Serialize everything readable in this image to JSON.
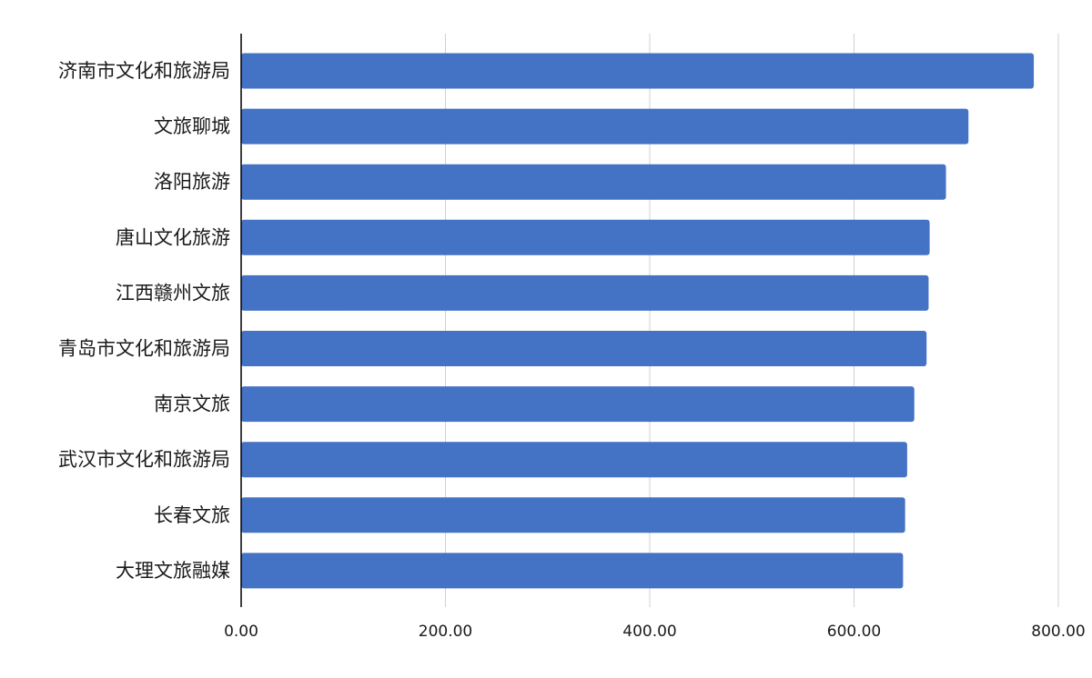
{
  "chart_data": {
    "type": "bar",
    "orientation": "horizontal",
    "categories": [
      "济南市文化和旅游局",
      "文旅聊城",
      "洛阳旅游",
      "唐山文化旅游",
      "江西赣州文旅",
      "青岛市文化和旅游局",
      "南京文旅",
      "武汉市文化和旅游局",
      "长春文旅",
      "大理文旅融媒"
    ],
    "values": [
      776,
      712,
      690,
      674,
      673,
      671,
      659,
      652,
      650,
      648
    ],
    "xlim": [
      0,
      800
    ],
    "xticks": [
      "0.00",
      "200.00",
      "400.00",
      "600.00",
      "800.00"
    ],
    "title": "",
    "xlabel": "",
    "ylabel": "",
    "grid": "vertical",
    "bar_color": "#4472C4",
    "grid_color": "#D0D0D0",
    "axis_color": "#000000",
    "label_color": "#1A1A1A"
  }
}
